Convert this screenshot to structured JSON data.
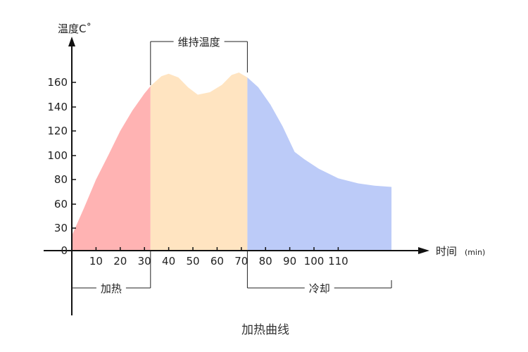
{
  "chart_data": {
    "type": "area",
    "title": "加热曲线",
    "ylabel": "温度C˚",
    "xlabel": "时间",
    "xunit": "(min)",
    "x_ticks": [
      10,
      20,
      30,
      40,
      50,
      60,
      70,
      80,
      90,
      100,
      110
    ],
    "y_ticks": [
      0,
      30,
      60,
      80,
      100,
      120,
      140,
      160
    ],
    "curve": [
      {
        "x": 0,
        "y": 20
      },
      {
        "x": 5,
        "y": 55
      },
      {
        "x": 10,
        "y": 80
      },
      {
        "x": 15,
        "y": 100
      },
      {
        "x": 20,
        "y": 120
      },
      {
        "x": 25,
        "y": 137
      },
      {
        "x": 30,
        "y": 151
      },
      {
        "x": 32.5,
        "y": 157
      },
      {
        "x": 37,
        "y": 165
      },
      {
        "x": 40,
        "y": 167
      },
      {
        "x": 44,
        "y": 164
      },
      {
        "x": 48,
        "y": 156
      },
      {
        "x": 52,
        "y": 150
      },
      {
        "x": 57,
        "y": 152
      },
      {
        "x": 62,
        "y": 158
      },
      {
        "x": 66,
        "y": 166
      },
      {
        "x": 69,
        "y": 168
      },
      {
        "x": 72.5,
        "y": 164
      },
      {
        "x": 77,
        "y": 156
      },
      {
        "x": 82,
        "y": 142
      },
      {
        "x": 87,
        "y": 124
      },
      {
        "x": 92,
        "y": 103
      },
      {
        "x": 96,
        "y": 97
      },
      {
        "x": 102,
        "y": 89
      },
      {
        "x": 110,
        "y": 81
      },
      {
        "x": 118,
        "y": 77
      },
      {
        "x": 125,
        "y": 75
      },
      {
        "x": 132,
        "y": 74
      }
    ],
    "phases": [
      {
        "label": "加热",
        "start": 0,
        "end": 32.5,
        "color": "#ffb3b3"
      },
      {
        "label": "维持温度",
        "start": 32.5,
        "end": 72.5,
        "color": "#ffe4c1"
      },
      {
        "label": "冷却",
        "start": 72.5,
        "end": 132,
        "color": "#bccbf8"
      }
    ],
    "grid": false,
    "legend": "none"
  }
}
